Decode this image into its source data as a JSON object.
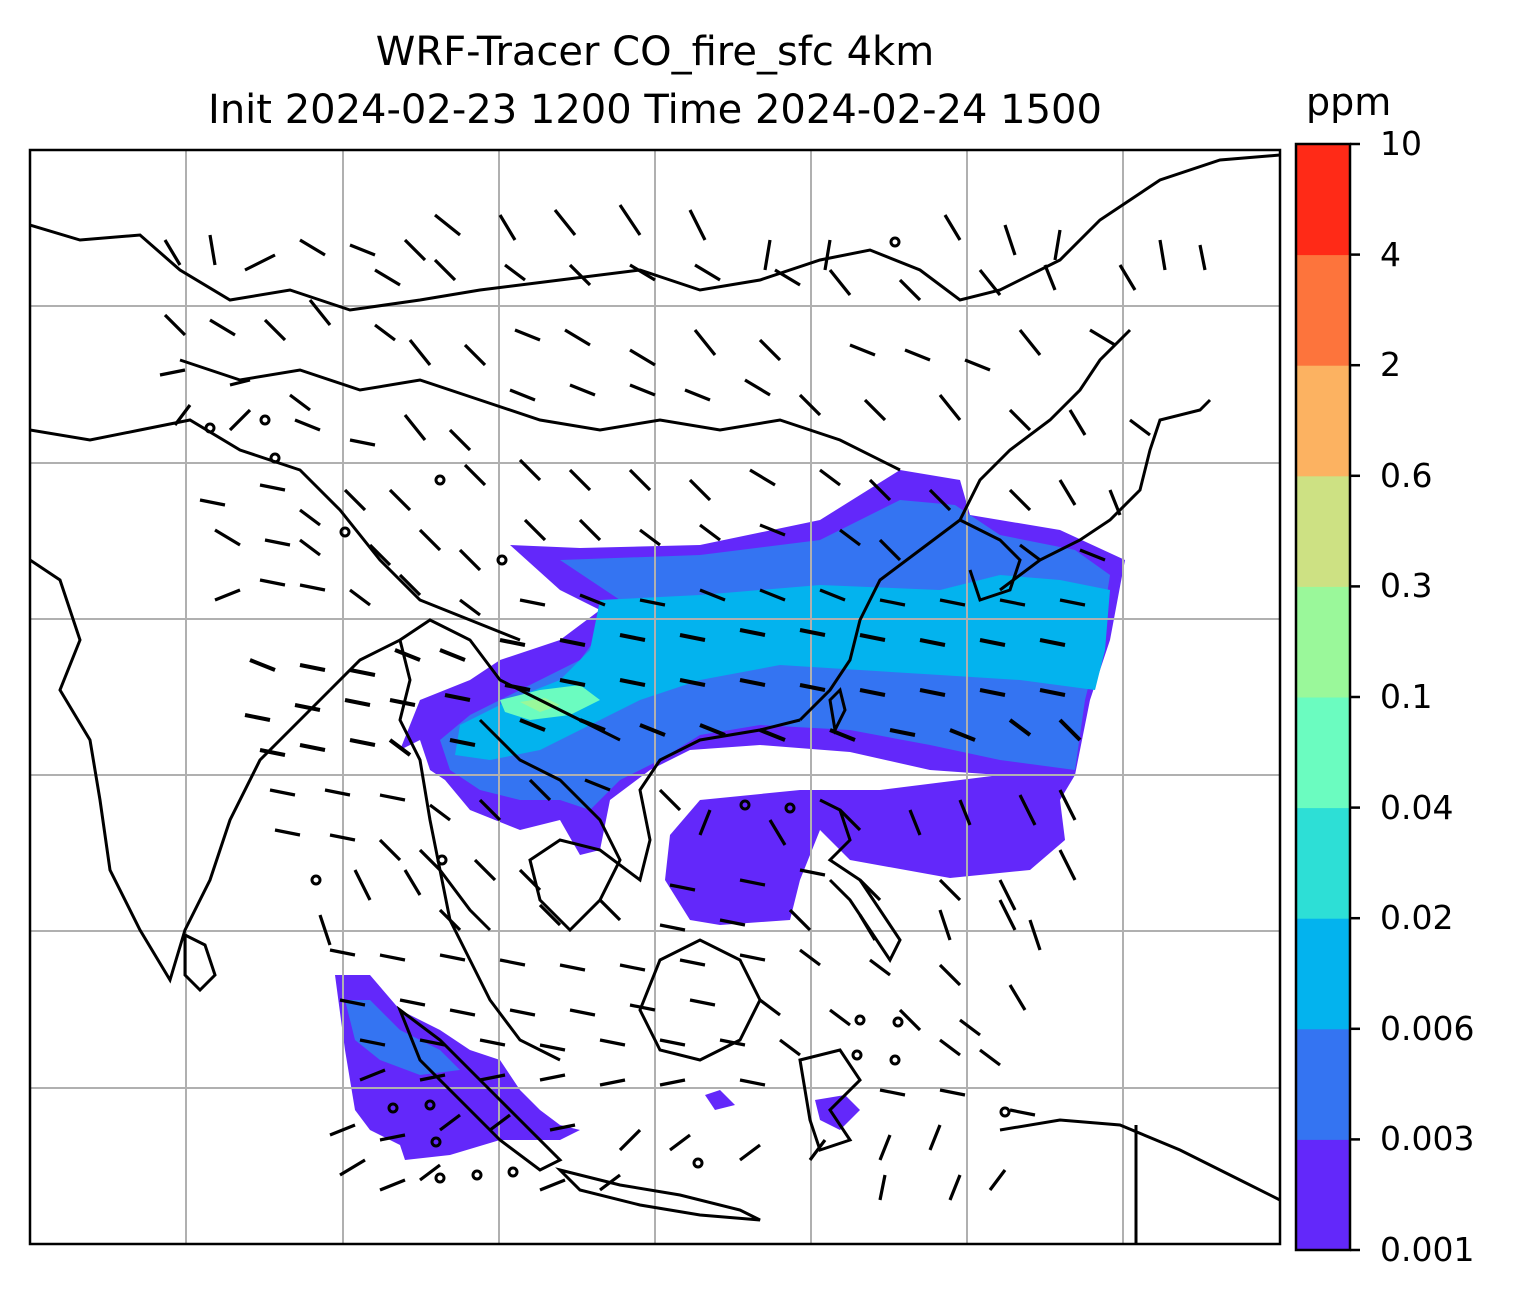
{
  "title": {
    "line1": "WRF-Tracer CO_fire_sfc 4km",
    "line2": "Init 2024-02-23 1200 Time 2024-02-24 1500"
  },
  "colorbar": {
    "unit": "ppm",
    "levels": [
      "0.001",
      "0.003",
      "0.006",
      "0.02",
      "0.04",
      "0.1",
      "0.3",
      "0.6",
      "2",
      "4",
      "10"
    ],
    "colors": [
      "#6328fa",
      "#3474f2",
      "#03b3ee",
      "#2ddfd6",
      "#6bfcc0",
      "#9af89a",
      "#cde183",
      "#fcb261",
      "#fd743c",
      "#ff2a17"
    ]
  },
  "map": {
    "gridlines": true,
    "field": "CO_fire_sfc",
    "features": [
      "coastlines",
      "country borders",
      "wind barbs",
      "calm circles"
    ]
  }
}
